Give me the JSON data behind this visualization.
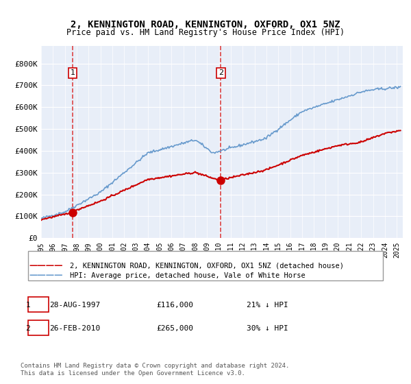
{
  "title": "2, KENNINGTON ROAD, KENNINGTON, OXFORD, OX1 5NZ",
  "subtitle": "Price paid vs. HM Land Registry's House Price Index (HPI)",
  "legend_label_red": "2, KENNINGTON ROAD, KENNINGTON, OXFORD, OX1 5NZ (detached house)",
  "legend_label_blue": "HPI: Average price, detached house, Vale of White Horse",
  "annotation1_label": "1",
  "annotation1_date": "28-AUG-1997",
  "annotation1_price": "£116,000",
  "annotation1_hpi": "21% ↓ HPI",
  "annotation2_label": "2",
  "annotation2_date": "26-FEB-2010",
  "annotation2_price": "£265,000",
  "annotation2_hpi": "30% ↓ HPI",
  "footer": "Contains HM Land Registry data © Crown copyright and database right 2024.\nThis data is licensed under the Open Government Licence v3.0.",
  "xlim_start": 1995.0,
  "xlim_end": 2025.5,
  "ylim_bottom": 0,
  "ylim_top": 880000,
  "yticks": [
    0,
    100000,
    200000,
    300000,
    400000,
    500000,
    600000,
    700000,
    800000
  ],
  "ytick_labels": [
    "£0",
    "£100K",
    "£200K",
    "£300K",
    "£400K",
    "£500K",
    "£600K",
    "£700K",
    "£800K"
  ],
  "xticks": [
    1995,
    1996,
    1997,
    1998,
    1999,
    2000,
    2001,
    2002,
    2003,
    2004,
    2005,
    2006,
    2007,
    2008,
    2009,
    2010,
    2011,
    2012,
    2013,
    2014,
    2015,
    2016,
    2017,
    2018,
    2019,
    2020,
    2021,
    2022,
    2023,
    2024,
    2025
  ],
  "marker1_x": 1997.65,
  "marker1_y": 116000,
  "marker2_x": 2010.15,
  "marker2_y": 265000,
  "bg_color": "#f0f4ff",
  "plot_bg": "#e8eef8",
  "red_color": "#cc0000",
  "blue_color": "#6699cc",
  "dashed_line_color": "#dd4444"
}
